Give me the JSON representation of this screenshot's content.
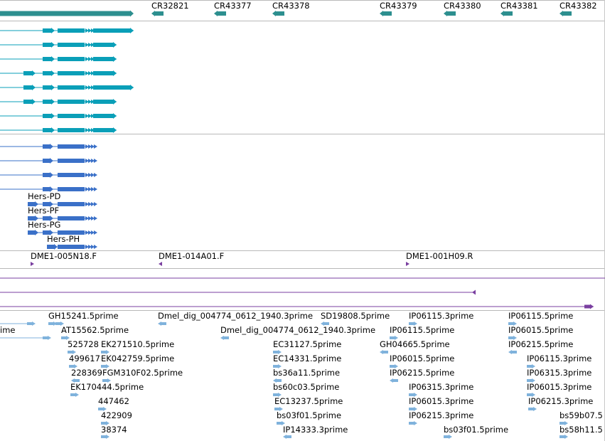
{
  "colors": {
    "ncrna": "#2d8f8f",
    "transcript_a": "#0a9fb8",
    "transcript_b": "#3a70c8",
    "clone": "#7a3fa0",
    "est": "#7fb2dc",
    "divider": "#b9b9b9"
  },
  "ncrna_track": {
    "labels": [
      "CR32821",
      "CR43377",
      "CR43378",
      "CR43379",
      "CR43380",
      "CR43381",
      "CR43382"
    ]
  },
  "transcript_track_b": {
    "labels": [
      "Hers-PD",
      "Hers-PF",
      "Hers-PG",
      "Hers-PH"
    ]
  },
  "clone_track": {
    "labels": [
      "DME1-005N18.F",
      "DME1-014A01.F",
      "DME1-001H09.R"
    ]
  },
  "est_track": {
    "labels": [
      "GH15241.5prime",
      "Dmel_dig_004774_0612_1940.3prime",
      "SD19808.5prime",
      "IP06115.3prime",
      "IP06115.5prime",
      "ime",
      "AT15562.5prime",
      "Dmel_dig_004774_0612_1940.3prime",
      "IP06115.5prime",
      "IP06015.5prime",
      "525728",
      "EK271510.5prime",
      "EC31127.5prime",
      "GH04665.5prime",
      "IP06215.5prime",
      "499617",
      "EK042759.5prime",
      "EC14331.5prime",
      "IP06015.5prime",
      "IP06115.3prime",
      "228369",
      "FGM310F02.5prime",
      "bs36a11.5prime",
      "IP06215.5prime",
      "IP06315.3prime",
      "EK170444.5prime",
      "bs60c03.5prime",
      "IP06315.3prime",
      "IP06015.3prime",
      "447462",
      "EC13237.5prime",
      "IP06015.3prime",
      "IP06215.3prime",
      "422909",
      "bs03f01.5prime",
      "IP06215.3prime",
      "bs59b07.5",
      "38374",
      "IP14333.3prime",
      "bs03f01.5prime",
      "bs58h11.5"
    ]
  }
}
